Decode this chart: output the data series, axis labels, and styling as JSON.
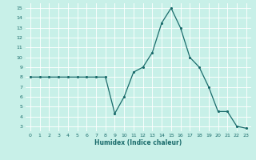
{
  "x": [
    0,
    1,
    2,
    3,
    4,
    5,
    6,
    7,
    8,
    9,
    10,
    11,
    12,
    13,
    14,
    15,
    16,
    17,
    18,
    19,
    20,
    21,
    22,
    23
  ],
  "y": [
    8,
    8,
    8,
    8,
    8,
    8,
    8,
    8,
    8,
    4.3,
    6.0,
    8.5,
    9.0,
    10.5,
    13.5,
    15,
    13.0,
    10.0,
    9.0,
    7.0,
    4.5,
    4.5,
    3.0,
    2.8
  ],
  "xlabel": "Humidex (Indice chaleur)",
  "yticks": [
    3,
    4,
    5,
    6,
    7,
    8,
    9,
    10,
    11,
    12,
    13,
    14,
    15
  ],
  "xticks": [
    0,
    1,
    2,
    3,
    4,
    5,
    6,
    7,
    8,
    9,
    10,
    11,
    12,
    13,
    14,
    15,
    16,
    17,
    18,
    19,
    20,
    21,
    22,
    23
  ],
  "line_color": "#1a6b6b",
  "marker_color": "#1a6b6b",
  "bg_color": "#c8f0e8",
  "grid_color": "#ffffff",
  "tick_label_color": "#1a6b6b",
  "axis_label_color": "#1a6b6b",
  "xlim_min": -0.5,
  "xlim_max": 23.5,
  "ylim_min": 2.5,
  "ylim_max": 15.5
}
